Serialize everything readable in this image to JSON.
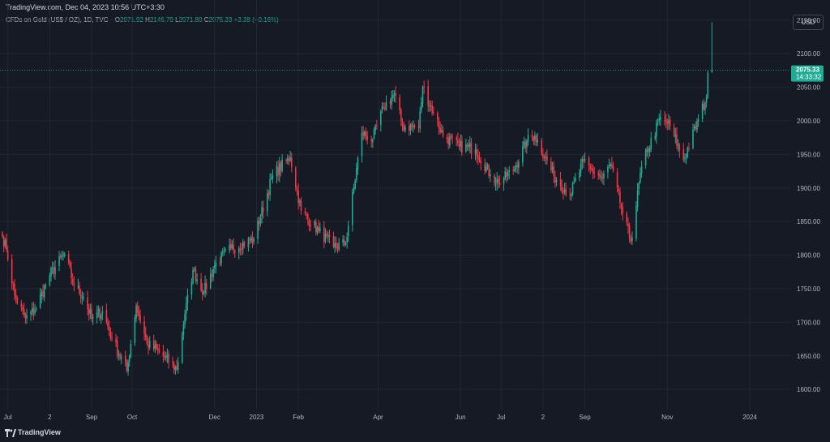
{
  "header": {
    "text": "TradingView.com, Dec 04, 2023 10:56 UTC+3:30"
  },
  "legend": {
    "symbol": "CFDs on Gold (US$ / OZ), 1D, TVC",
    "open_label": "O",
    "open": "2071.92",
    "high_label": "H",
    "high": "2146.79",
    "low_label": "L",
    "low": "2071.80",
    "close_label": "C",
    "close": "2075.33",
    "change": "+3.38 (+0.16%)"
  },
  "currency_button": "USD",
  "price_tag": {
    "price": "2075.33",
    "countdown": "14:33:32"
  },
  "footer": {
    "brand": "TradingView"
  },
  "colors": {
    "up": "#22ab94",
    "down": "#f23645",
    "background": "#161a25",
    "grid": "#232632"
  },
  "chart_data": {
    "type": "candlestick",
    "ylim": [
      1570,
      2180
    ],
    "y_ticks": [
      "1600.00",
      "1650.00",
      "1700.00",
      "1750.00",
      "1800.00",
      "1850.00",
      "1900.00",
      "1950.00",
      "2000.00",
      "2050.00",
      "2100.00",
      "2150.00"
    ],
    "y_tick_values": [
      1600,
      1650,
      1700,
      1750,
      1800,
      1850,
      1900,
      1950,
      2000,
      2050,
      2100,
      2150
    ],
    "x_ticks": [
      "Jul",
      "2",
      "Sep",
      "Oct",
      "Dec",
      "2023",
      "Feb",
      "Apr",
      "Jun",
      "Jul",
      "2",
      "Sep",
      "Nov",
      "2024"
    ],
    "x_tick_dates": [
      "2022-07-01",
      "2022-08-01",
      "2022-09-01",
      "2022-10-01",
      "2022-12-01",
      "2023-01-01",
      "2023-02-01",
      "2023-04-01",
      "2023-06-01",
      "2023-07-01",
      "2023-08-01",
      "2023-09-01",
      "2023-11-01",
      "2024-01-01"
    ],
    "x_range": [
      "2022-06-27",
      "2024-01-31"
    ],
    "last_price": 2075.33,
    "close_anchors": [
      [
        "2022-06-27",
        1828
      ],
      [
        "2022-06-30",
        1808
      ],
      [
        "2022-07-06",
        1740
      ],
      [
        "2022-07-14",
        1706
      ],
      [
        "2022-07-21",
        1718
      ],
      [
        "2022-08-01",
        1770
      ],
      [
        "2022-08-12",
        1802
      ],
      [
        "2022-08-19",
        1755
      ],
      [
        "2022-08-26",
        1738
      ],
      [
        "2022-09-01",
        1705
      ],
      [
        "2022-09-09",
        1717
      ],
      [
        "2022-09-16",
        1676
      ],
      [
        "2022-09-27",
        1628
      ],
      [
        "2022-10-04",
        1725
      ],
      [
        "2022-10-12",
        1668
      ],
      [
        "2022-10-21",
        1655
      ],
      [
        "2022-11-03",
        1630
      ],
      [
        "2022-11-09",
        1712
      ],
      [
        "2022-11-15",
        1778
      ],
      [
        "2022-11-23",
        1745
      ],
      [
        "2022-12-01",
        1785
      ],
      [
        "2022-12-13",
        1810
      ],
      [
        "2022-12-30",
        1824
      ],
      [
        "2023-01-13",
        1919
      ],
      [
        "2023-01-26",
        1946
      ],
      [
        "2023-02-03",
        1866
      ],
      [
        "2023-02-16",
        1836
      ],
      [
        "2023-02-27",
        1812
      ],
      [
        "2023-03-08",
        1818
      ],
      [
        "2023-03-20",
        1982
      ],
      [
        "2023-03-28",
        1972
      ],
      [
        "2023-04-05",
        2020
      ],
      [
        "2023-04-13",
        2040
      ],
      [
        "2023-04-19",
        1992
      ],
      [
        "2023-05-01",
        1990
      ],
      [
        "2023-05-04",
        2050
      ],
      [
        "2023-05-12",
        2012
      ],
      [
        "2023-05-19",
        1978
      ],
      [
        "2023-05-31",
        1962
      ],
      [
        "2023-06-12",
        1958
      ],
      [
        "2023-06-23",
        1920
      ],
      [
        "2023-06-29",
        1908
      ],
      [
        "2023-07-10",
        1926
      ],
      [
        "2023-07-20",
        1970
      ],
      [
        "2023-07-26",
        1978
      ],
      [
        "2023-08-09",
        1918
      ],
      [
        "2023-08-21",
        1890
      ],
      [
        "2023-08-31",
        1940
      ],
      [
        "2023-09-05",
        1928
      ],
      [
        "2023-09-14",
        1914
      ],
      [
        "2023-09-20",
        1935
      ],
      [
        "2023-09-29",
        1862
      ],
      [
        "2023-10-05",
        1820
      ],
      [
        "2023-10-13",
        1932
      ],
      [
        "2023-10-27",
        2006
      ],
      [
        "2023-11-03",
        1992
      ],
      [
        "2023-11-13",
        1942
      ],
      [
        "2023-11-24",
        2002
      ],
      [
        "2023-11-30",
        2036
      ],
      [
        "2023-12-01",
        2071.95
      ],
      [
        "2023-12-04",
        2075.33
      ]
    ]
  }
}
